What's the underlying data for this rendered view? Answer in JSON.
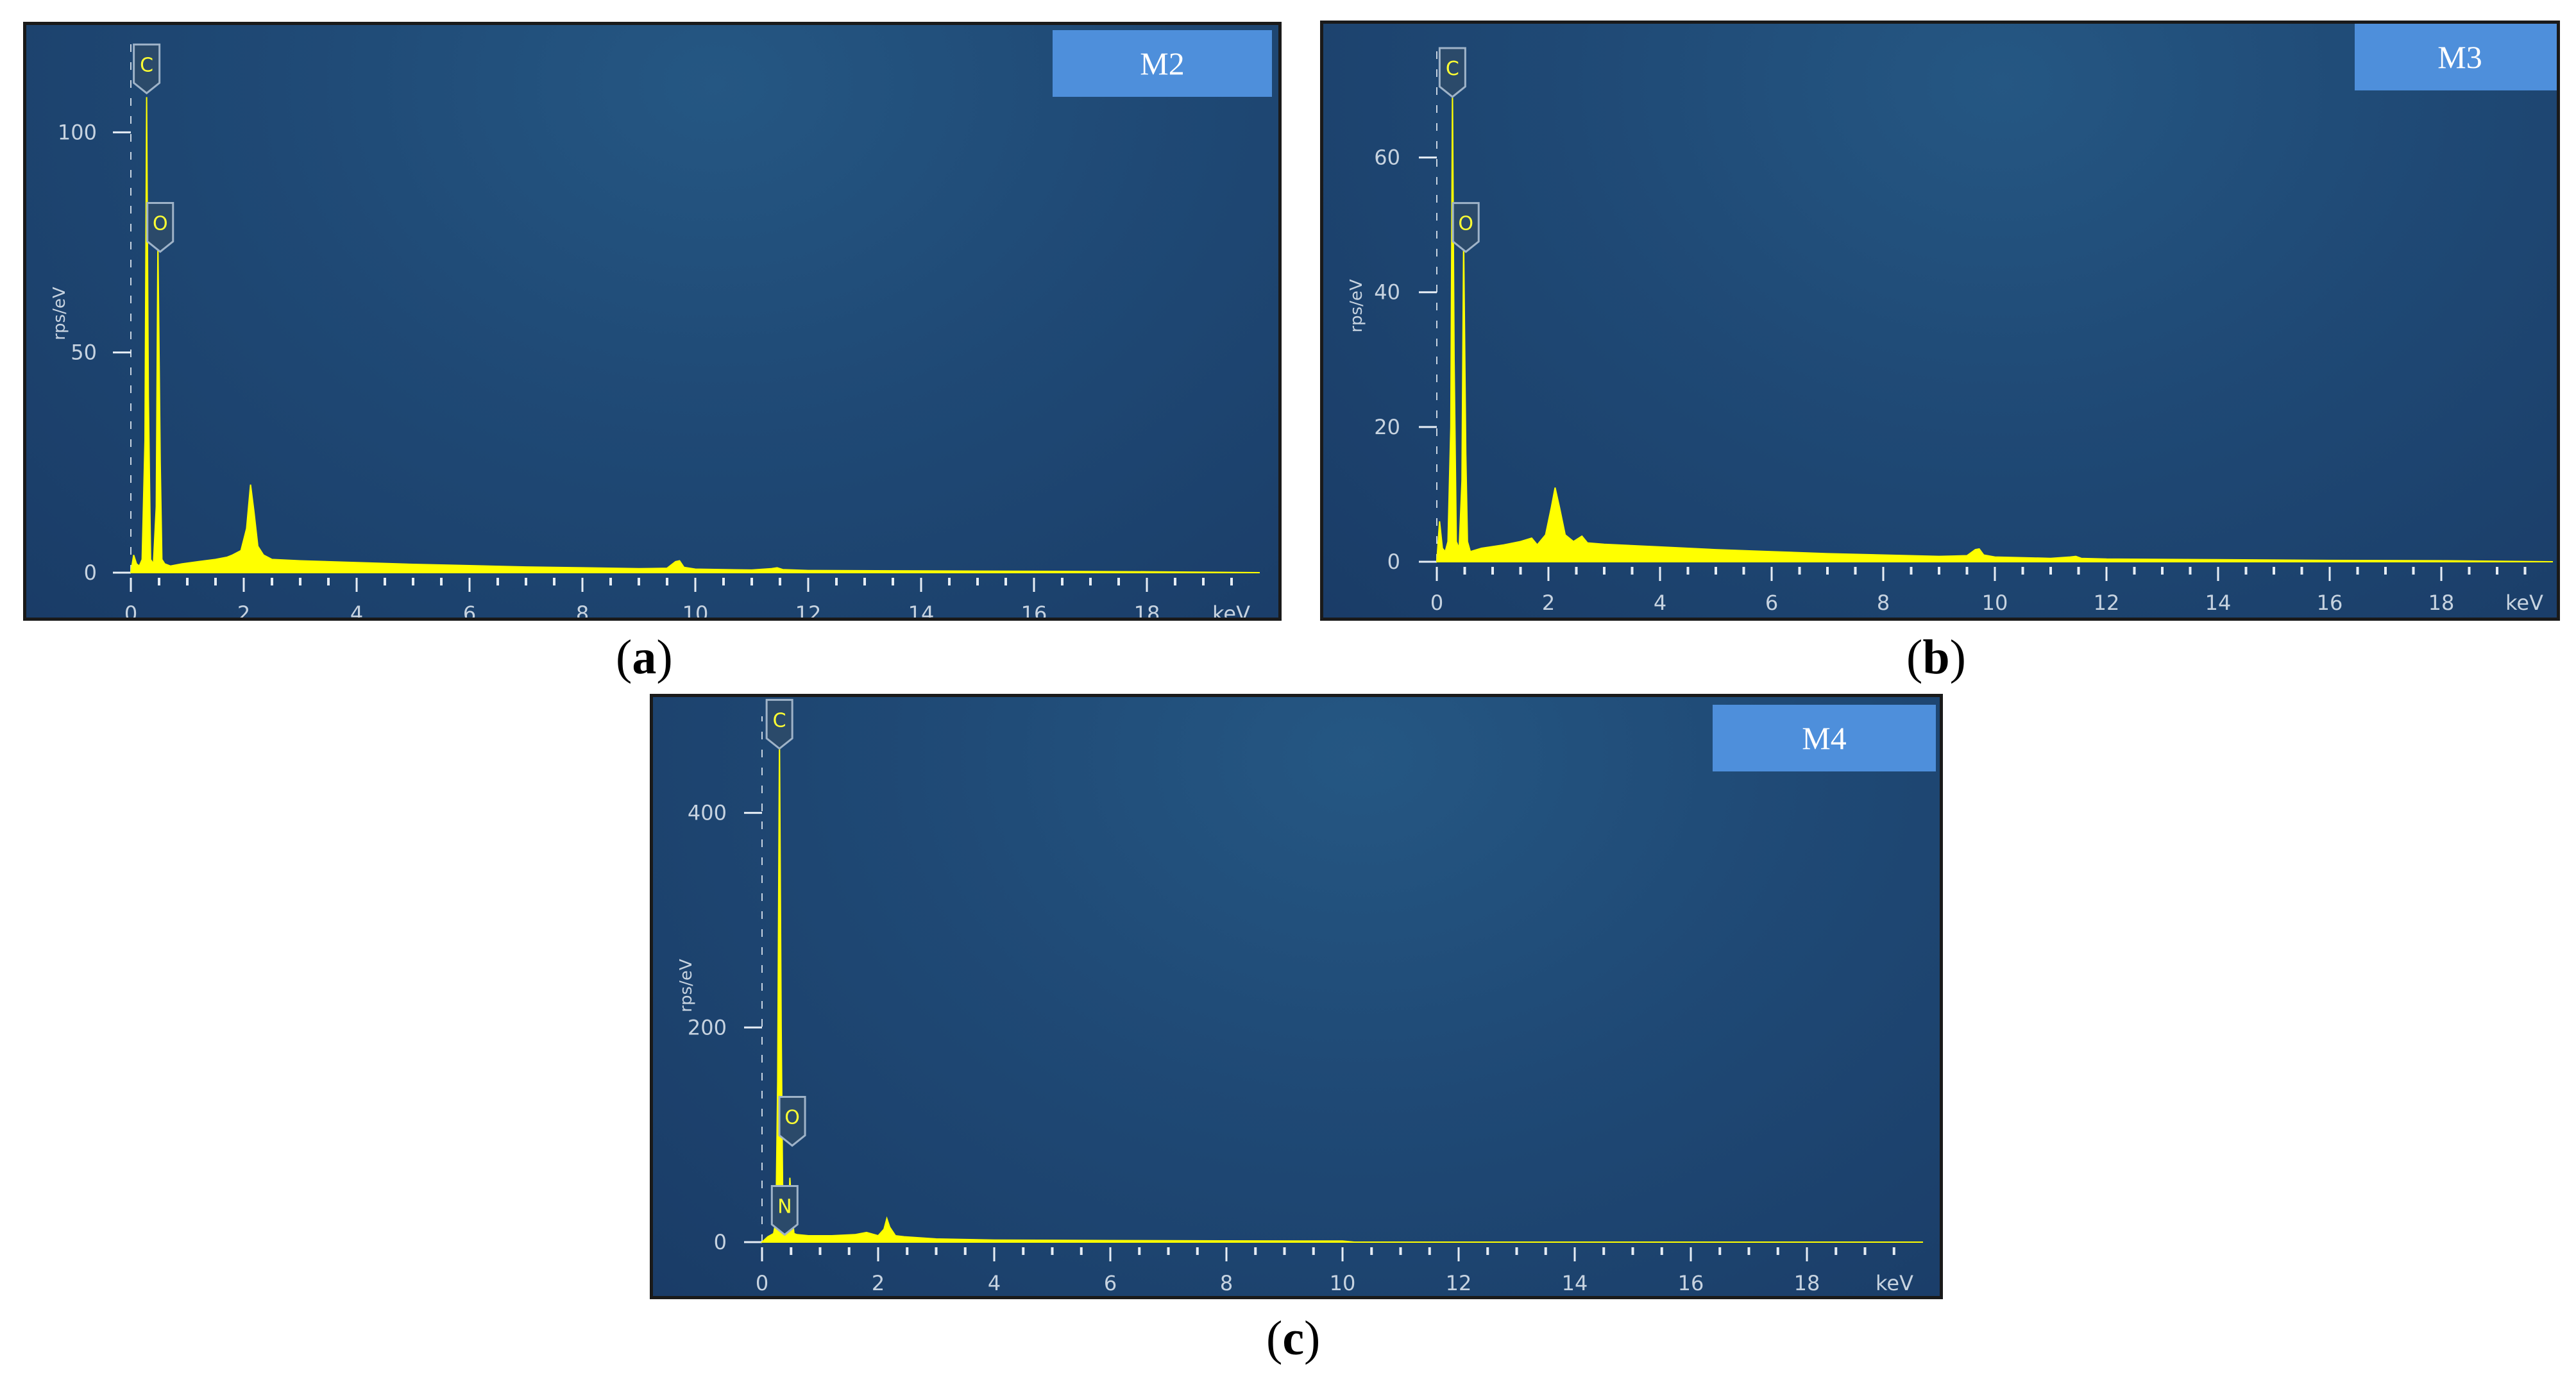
{
  "panels": [
    {
      "id": "a",
      "caption_letter": "a",
      "sample_label": "M2",
      "chart_data": {
        "type": "area",
        "xlabel": "keV",
        "ylabel": "rps/eV",
        "xlim": [
          0,
          20
        ],
        "ylim": [
          0,
          120
        ],
        "x_ticks": [
          0,
          2,
          4,
          6,
          8,
          10,
          12,
          14,
          16,
          18
        ],
        "y_ticks": [
          0,
          50,
          100
        ],
        "series": [
          {
            "color": "#ffff00",
            "x": [
              0,
              0.05,
              0.1,
              0.15,
              0.2,
              0.25,
              0.28,
              0.31,
              0.35,
              0.4,
              0.45,
              0.48,
              0.52,
              0.55,
              0.6,
              0.7,
              0.9,
              1.2,
              1.5,
              1.7,
              1.8,
              1.95,
              2.05,
              2.12,
              2.18,
              2.25,
              2.35,
              2.5,
              3.0,
              4.0,
              5.0,
              6.0,
              7.0,
              8.0,
              9.0,
              9.5,
              9.65,
              9.72,
              9.8,
              10.0,
              11.0,
              11.35,
              11.45,
              11.55,
              12.0,
              14.0,
              16.0,
              18.0,
              20.0
            ],
            "y": [
              0,
              4,
              2,
              1.5,
              3,
              30,
              108,
              40,
              3,
              2,
              15,
              75,
              25,
              3,
              2,
              1.5,
              2,
              2.5,
              3,
              3.5,
              4,
              5,
              10,
              20,
              14,
              6,
              4,
              3,
              2.7,
              2.3,
              1.9,
              1.6,
              1.3,
              1.1,
              0.9,
              1,
              2.5,
              2.7,
              1.2,
              0.8,
              0.6,
              0.9,
              1.1,
              0.7,
              0.5,
              0.4,
              0.3,
              0.2,
              0
            ]
          }
        ],
        "peaks": [
          {
            "element": "C",
            "x": 0.28,
            "label_y": 115
          },
          {
            "element": "O",
            "x": 0.52,
            "label_y": 79
          }
        ]
      }
    },
    {
      "id": "b",
      "caption_letter": "b",
      "sample_label": "M3",
      "chart_data": {
        "type": "area",
        "xlabel": "keV",
        "ylabel": "rps/eV",
        "xlim": [
          0,
          20
        ],
        "ylim": [
          0,
          77
        ],
        "x_ticks": [
          0,
          2,
          4,
          6,
          8,
          10,
          12,
          14,
          16,
          18
        ],
        "y_ticks": [
          0,
          20,
          40,
          60
        ],
        "series": [
          {
            "color": "#ffff00",
            "x": [
              0,
              0.05,
              0.1,
              0.15,
              0.2,
              0.25,
              0.28,
              0.31,
              0.35,
              0.4,
              0.45,
              0.48,
              0.52,
              0.55,
              0.6,
              0.8,
              1.2,
              1.5,
              1.7,
              1.8,
              1.95,
              2.05,
              2.12,
              2.2,
              2.3,
              2.45,
              2.6,
              2.7,
              3.0,
              4.0,
              5.0,
              6.0,
              7.0,
              8.0,
              9.0,
              9.5,
              9.65,
              9.72,
              9.8,
              10.0,
              11.0,
              11.35,
              11.45,
              11.55,
              12.0,
              14.0,
              16.0,
              18.0,
              20.0
            ],
            "y": [
              0,
              6,
              2,
              1.5,
              3,
              20,
              70,
              30,
              3,
              2,
              12,
              48,
              16,
              3,
              1.5,
              2,
              2.5,
              3,
              3.5,
              2.5,
              4,
              8,
              11,
              8,
              4,
              3,
              3.8,
              2.8,
              2.6,
              2.2,
              1.8,
              1.5,
              1.2,
              1,
              0.8,
              0.9,
              1.8,
              1.9,
              1,
              0.7,
              0.5,
              0.7,
              0.8,
              0.5,
              0.4,
              0.3,
              0.2,
              0.15,
              0
            ]
          }
        ],
        "peaks": [
          {
            "element": "C",
            "x": 0.28,
            "label_y": 73
          },
          {
            "element": "O",
            "x": 0.52,
            "label_y": 50
          }
        ]
      }
    },
    {
      "id": "c",
      "caption_letter": "c",
      "sample_label": "M4",
      "chart_data": {
        "type": "area",
        "xlabel": "keV",
        "ylabel": "rps/eV",
        "xlim": [
          0,
          20
        ],
        "ylim": [
          0,
          490
        ],
        "x_ticks": [
          0,
          2,
          4,
          6,
          8,
          10,
          12,
          14,
          16,
          18
        ],
        "y_ticks": [
          0,
          200,
          400
        ],
        "series": [
          {
            "color": "#ffff00",
            "x": [
              0,
              0.1,
              0.2,
              0.24,
              0.27,
              0.3,
              0.33,
              0.36,
              0.4,
              0.45,
              0.48,
              0.52,
              0.55,
              0.6,
              0.8,
              1.2,
              1.6,
              1.8,
              2.0,
              2.1,
              2.15,
              2.2,
              2.3,
              2.45,
              3.0,
              4.0,
              6.0,
              8.0,
              10.0,
              10.2,
              12.0,
              20.0
            ],
            "y": [
              0,
              5,
              8,
              20,
              150,
              470,
              200,
              20,
              10,
              15,
              60,
              25,
              8,
              7,
              6,
              6,
              7,
              9,
              6,
              12,
              22,
              14,
              6,
              5,
              3,
              2,
              1.5,
              1.2,
              1,
              0,
              0,
              0
            ]
          }
        ],
        "peaks": [
          {
            "element": "C",
            "x": 0.3,
            "label_y": 485
          },
          {
            "element": "O",
            "x": 0.52,
            "label_y": 115
          },
          {
            "element": "N",
            "x": 0.39,
            "label_y": 32
          }
        ]
      }
    }
  ]
}
